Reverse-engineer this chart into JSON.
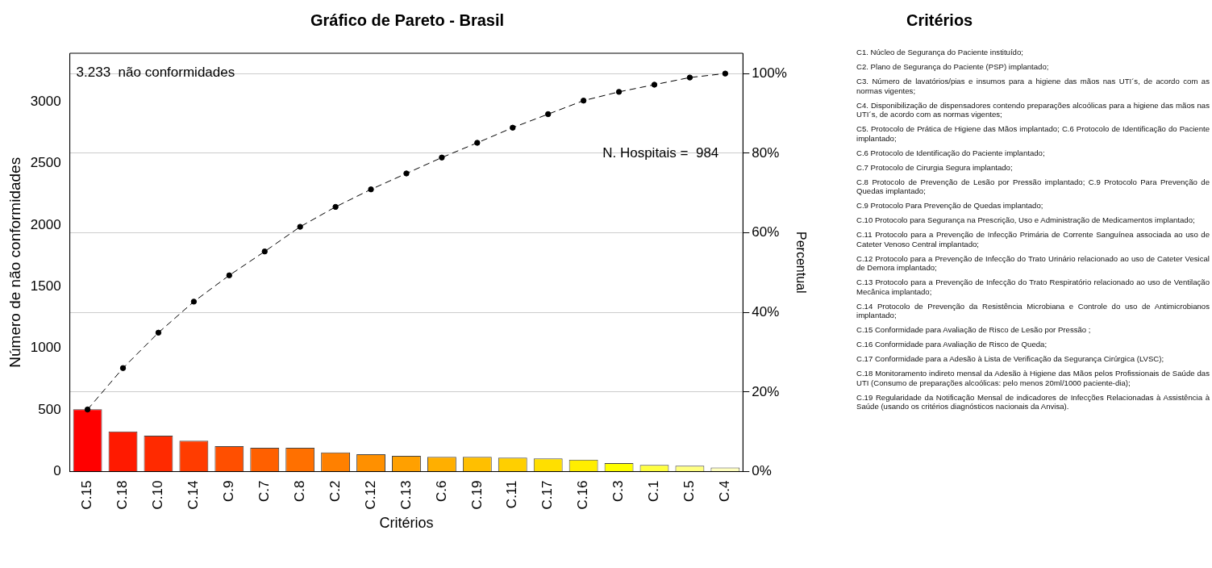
{
  "chart_data": [
    {
      "type": "bar",
      "title": "Gráfico de Pareto - Brasil",
      "xlabel": "Critérios",
      "ylabel": "Número de não conformidades",
      "y2label": "Percentual",
      "categories": [
        "C.15",
        "C.18",
        "C.10",
        "C.14",
        "C.9",
        "C.7",
        "C.8",
        "C.2",
        "C.12",
        "C.13",
        "C.6",
        "C.19",
        "C.11",
        "C.17",
        "C.16",
        "C.3",
        "C.1",
        "C.5",
        "C.4"
      ],
      "series": [
        {
          "type": "bar",
          "values": [
            505,
            326,
            291,
            251,
            207,
            193,
            193,
            155,
            141,
            127,
            120,
            120,
            113,
            106,
            96,
            68,
            54,
            47,
            33
          ],
          "colors": [
            "#ff0000",
            "#ff1a00",
            "#ff2a00",
            "#ff3c00",
            "#ff4f00",
            "#ff6000",
            "#ff7000",
            "#ff8000",
            "#ff9000",
            "#ffa000",
            "#ffaf00",
            "#ffbf00",
            "#ffcf00",
            "#ffdf00",
            "#ffee00",
            "#ffff00",
            "#ffff40",
            "#ffff80",
            "#ffffbf"
          ]
        },
        {
          "type": "line",
          "axis": "y2",
          "color": "#000000",
          "values": [
            15.6,
            26.0,
            34.9,
            42.7,
            49.3,
            55.3,
            61.5,
            66.5,
            70.9,
            74.9,
            78.9,
            82.6,
            86.4,
            89.8,
            93.2,
            95.4,
            97.2,
            99.0,
            100
          ]
        }
      ],
      "ylim": [
        0,
        3395
      ],
      "yticks": [
        0,
        500,
        1000,
        1500,
        2000,
        2500,
        3000
      ],
      "y2lim": [
        0,
        105.1
      ],
      "y2ticks": [
        {
          "value": 0,
          "label": "0%"
        },
        {
          "value": 20,
          "label": "20%"
        },
        {
          "value": 40,
          "label": "40%"
        },
        {
          "value": 60,
          "label": "60%"
        },
        {
          "value": 80,
          "label": "80%"
        },
        {
          "value": 100,
          "label": "100%"
        }
      ],
      "grid": "y2",
      "marker": "circle",
      "line_style": "dashed",
      "legend": false,
      "annotations": [
        "3.233  não conformidades",
        "N. Hospitais =  984"
      ]
    },
    {
      "type": "other",
      "title": "Critérios",
      "annotations": [
        "C1. Núcleo de Segurança do Paciente instituído;",
        "C2. Plano de Segurança do Paciente (PSP) implantado;",
        "C3. Número de lavatórios/pias e insumos para a higiene das mãos nas UTI´s, de acordo com as normas vigentes;",
        "C4. Disponibilização de dispensadores contendo preparações alcoólicas para a higiene das mãos nas UTI´s, de acordo com as normas vigentes;",
        "C5. Protocolo de Prática de Higiene das Mãos implantado; C.6 Protocolo de Identificação do Paciente implantado;",
        "C.6 Protocolo de Identificação do Paciente implantado;",
        "C.7 Protocolo de Cirurgia Segura implantado;",
        "C.8  Protocolo de Prevenção de Lesão por Pressão implantado; C.9 Protocolo Para Prevenção de Quedas implantado;",
        "C.9 Protocolo Para Prevenção de Quedas implantado;",
        "C.10  Protocolo para Segurança na Prescrição, Uso e Administração de Medicamentos implantado;",
        "C.11 Protocolo para a Prevenção de Infecção Primária de Corrente Sanguínea associada ao uso de Cateter Venoso Central implantado;",
        "C.12 Protocolo para a Prevenção de Infecção do Trato Urinário relacionado ao uso de Cateter Vesical de Demora implantado;",
        "C.13 Protocolo para a Prevenção de Infecção do Trato Respiratório relacionado ao uso de Ventilação Mecânica implantado;",
        "C.14 Protocolo de Prevenção da Resistência Microbiana e Controle do uso de Antimicrobianos implantado;",
        "C.15 Conformidade para Avaliação de Risco de Lesão por Pressão ;",
        "C.16 Conformidade para Avaliação de Risco de Queda;",
        "C.17 Conformidade para a Adesão à Lista de Verificação da Segurança Cirúrgica (LVSC);",
        "C.18 Monitoramento indireto mensal da Adesão à Higiene das Mãos pelos Profissionais de Saúde das UTI (Consumo de preparações alcoólicas: pelo menos 20ml/1000 paciente-dia);",
        "C.19 Regularidade da Notificação Mensal de indicadores de Infecções Relacionadas à Assistência à Saúde (usando os critérios diagnósticos nacionais da Anvisa)."
      ]
    }
  ]
}
